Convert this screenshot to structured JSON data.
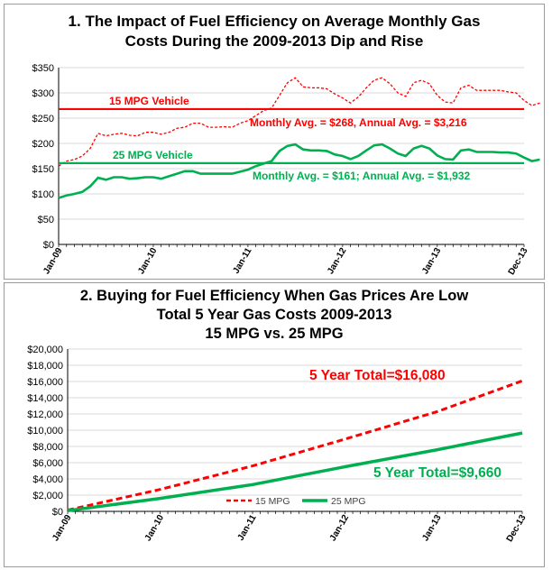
{
  "colors": {
    "mpg15": "#ff0000",
    "mpg25": "#00b050",
    "grid": "#d9d9d9",
    "axis": "#000000"
  },
  "chart_data": [
    {
      "type": "line",
      "title_lines": [
        "1. The Impact of Fuel Efficiency on Average Monthly Gas",
        "Costs During the 2009-2013 Dip and Rise"
      ],
      "xlabel": "",
      "ylabel": "",
      "x_ticks": [
        "Jan-09",
        "Jan-10",
        "Jan-11",
        "Jan-12",
        "Jan-13",
        "Dec-13"
      ],
      "y_ticks": [
        "$0",
        "$50",
        "$100",
        "$150",
        "$200",
        "$250",
        "$300",
        "$350"
      ],
      "ylim": [
        0,
        350
      ],
      "grid": true,
      "series": [
        {
          "name": "15 MPG Vehicle",
          "style": "dashed",
          "values": [
            155,
            165,
            168,
            175,
            190,
            220,
            215,
            218,
            220,
            216,
            215,
            222,
            222,
            218,
            222,
            230,
            232,
            240,
            240,
            232,
            232,
            233,
            232,
            240,
            245,
            255,
            265,
            270,
            295,
            320,
            330,
            312,
            310,
            310,
            308,
            298,
            290,
            280,
            292,
            310,
            325,
            330,
            318,
            300,
            293,
            320,
            325,
            318,
            295,
            282,
            280,
            310,
            315,
            305,
            305,
            305,
            305,
            302,
            300,
            285,
            275,
            280
          ]
        },
        {
          "name": "25 MPG Vehicle",
          "style": "solid",
          "values": [
            92,
            97,
            100,
            104,
            115,
            132,
            128,
            133,
            133,
            130,
            131,
            133,
            133,
            130,
            135,
            140,
            145,
            145,
            140,
            140,
            140,
            140,
            140,
            144,
            148,
            155,
            160,
            165,
            185,
            195,
            198,
            188,
            186,
            186,
            185,
            178,
            175,
            169,
            175,
            186,
            196,
            198,
            190,
            180,
            175,
            190,
            195,
            190,
            176,
            169,
            168,
            186,
            188,
            183,
            183,
            183,
            182,
            182,
            180,
            172,
            165,
            168
          ]
        }
      ],
      "reference_lines": [
        {
          "series": "15 MPG Vehicle",
          "value": 268,
          "label": "15 MPG Vehicle",
          "annotation": "Monthly Avg. = $268, Annual Avg. = $3,216"
        },
        {
          "series": "25 MPG Vehicle",
          "value": 161,
          "label": "25 MPG Vehicle",
          "annotation": "Monthly Avg. = $161; Annual Avg. = $1,932"
        }
      ]
    },
    {
      "type": "line",
      "title_lines": [
        "2. Buying for Fuel Efficiency When Gas Prices Are Low",
        "Total 5 Year Gas Costs 2009-2013",
        "15 MPG vs. 25 MPG"
      ],
      "xlabel": "",
      "ylabel": "",
      "x_ticks": [
        "Jan-09",
        "Jan-10",
        "Jan-11",
        "Jan-12",
        "Jan-13",
        "Dec-13"
      ],
      "y_ticks": [
        "$0",
        "$2,000",
        "$4,000",
        "$6,000",
        "$8,000",
        "$10,000",
        "$12,000",
        "$14,000",
        "$16,000",
        "$18,000",
        "$20,000"
      ],
      "ylim": [
        0,
        20000
      ],
      "grid": true,
      "legend": "bottom-center",
      "series": [
        {
          "name": "15 MPG",
          "style": "dashed",
          "x": [
            0,
            12,
            24,
            36,
            48,
            59
          ],
          "values": [
            155,
            2700,
            5600,
            8900,
            12300,
            16080
          ]
        },
        {
          "name": "25 MPG",
          "style": "solid",
          "x": [
            0,
            12,
            24,
            36,
            48,
            59
          ],
          "values": [
            92,
            1600,
            3300,
            5500,
            7600,
            9660
          ]
        }
      ],
      "annotations": [
        {
          "series": "15 MPG",
          "text": "5 Year Total=$16,080"
        },
        {
          "series": "25 MPG",
          "text": "5 Year Total=$9,660"
        }
      ]
    }
  ]
}
